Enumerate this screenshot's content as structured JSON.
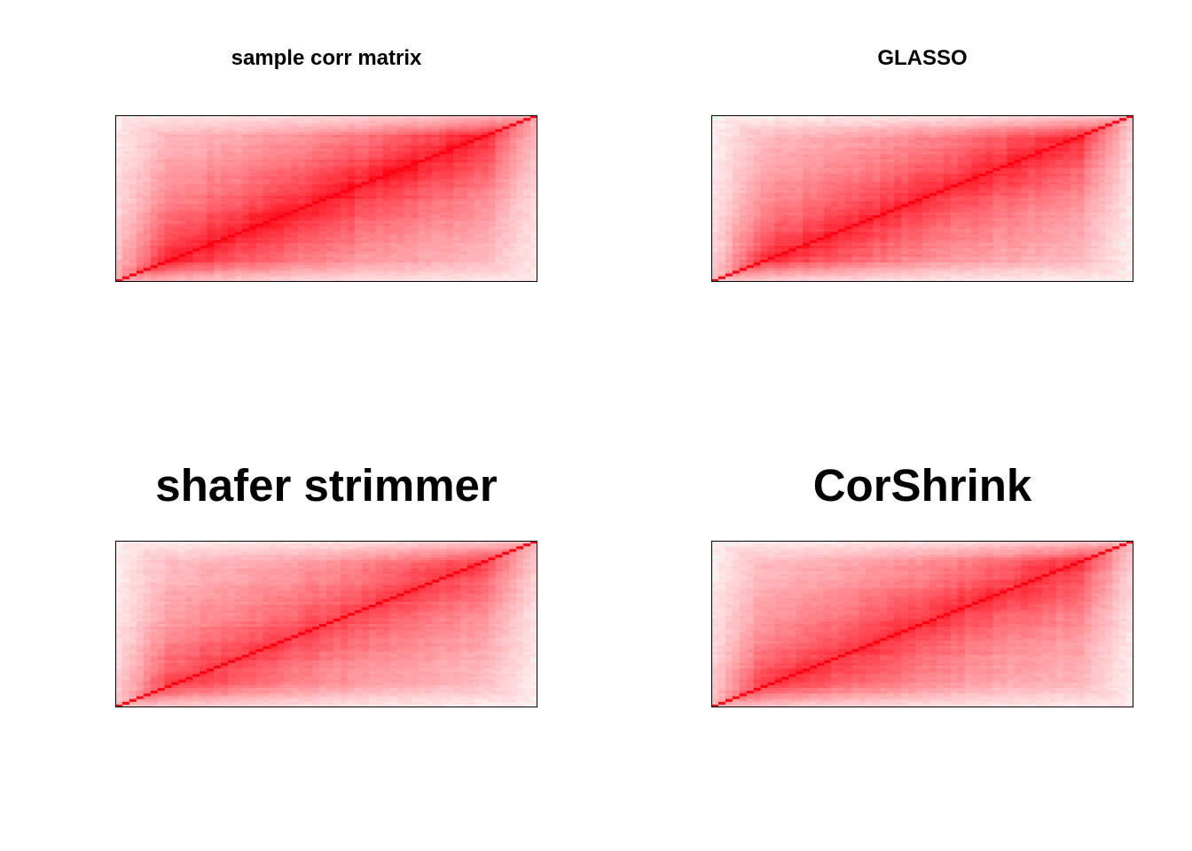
{
  "chart_data": [
    {
      "type": "heatmap",
      "title": "sample corr matrix",
      "colors": {
        "low": "#ffffff",
        "high": "#ff0010",
        "negative": "#e8f8e8"
      },
      "axes": "none",
      "grid": false,
      "legend": "none",
      "band_strength": 0.85,
      "edge_fade": 0.6
    },
    {
      "type": "heatmap",
      "title": "GLASSO",
      "colors": {
        "low": "#ffffff",
        "high": "#ff0010",
        "negative": "#e8f8e8"
      },
      "axes": "none",
      "grid": false,
      "legend": "none",
      "band_strength": 0.8,
      "edge_fade": 0.7
    },
    {
      "type": "heatmap",
      "title": "shafer strimmer",
      "colors": {
        "low": "#ffffff",
        "high": "#ff0010",
        "negative": "#e8f8e8"
      },
      "axes": "none",
      "grid": false,
      "legend": "none",
      "band_strength": 0.7,
      "edge_fade": 0.65
    },
    {
      "type": "heatmap",
      "title": "CorShrink",
      "colors": {
        "low": "#ffffff",
        "high": "#ff0010",
        "negative": "#e8f8e8"
      },
      "axes": "none",
      "grid": false,
      "legend": "none",
      "band_strength": 0.75,
      "edge_fade": 0.65
    }
  ]
}
